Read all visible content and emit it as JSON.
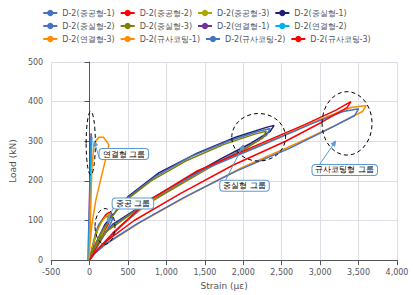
{
  "chart_data": {
    "type": "line",
    "xlabel": "Strain (με)",
    "ylabel": "Load (kN)",
    "xlim": [
      -500,
      4000
    ],
    "ylim": [
      0,
      500
    ],
    "xticks": [
      -500,
      0,
      500,
      1000,
      1500,
      2000,
      2500,
      3000,
      3500,
      4000
    ],
    "yticks": [
      0,
      100,
      200,
      300,
      400,
      500
    ],
    "grid": true,
    "legend": "top",
    "series": [
      {
        "name": "D-2(중공형-1)",
        "color": "#4472C4",
        "x": [
          0,
          20,
          50,
          80,
          120,
          180,
          220,
          260,
          290,
          300,
          280,
          240,
          180,
          120,
          60,
          20,
          0
        ],
        "values": [
          0,
          20,
          45,
          70,
          90,
          105,
          110,
          112,
          110,
          105,
          95,
          80,
          60,
          40,
          20,
          8,
          0
        ]
      },
      {
        "name": "D-2(중공형-2)",
        "color": "#FF0000",
        "x": [
          0,
          30,
          70,
          110,
          160,
          210,
          250,
          280,
          270,
          240,
          190,
          140,
          80,
          30,
          0
        ],
        "values": [
          0,
          25,
          55,
          80,
          100,
          115,
          120,
          118,
          108,
          90,
          72,
          52,
          30,
          12,
          0
        ]
      },
      {
        "name": "D-2(중공형-3)",
        "color": "#AAAA00",
        "x": [
          0,
          25,
          60,
          100,
          150,
          200,
          240,
          260,
          250,
          220,
          170,
          110,
          55,
          15,
          0
        ],
        "values": [
          0,
          22,
          50,
          75,
          95,
          108,
          114,
          116,
          106,
          88,
          68,
          48,
          26,
          10,
          0
        ]
      },
      {
        "name": "D-2(중실형-1)",
        "color": "#1F1F6F",
        "x": [
          0,
          50,
          200,
          500,
          900,
          1400,
          1900,
          2300,
          2400,
          2350,
          2100,
          1700,
          1200,
          700,
          300,
          80,
          0
        ],
        "values": [
          0,
          30,
          90,
          160,
          220,
          270,
          310,
          335,
          340,
          325,
          295,
          255,
          200,
          140,
          90,
          40,
          0
        ]
      },
      {
        "name": "D-2(중실형-2)",
        "color": "#4472C4",
        "x": [
          0,
          40,
          180,
          450,
          850,
          1300,
          1800,
          2200,
          2350,
          2300,
          2050,
          1650,
          1150,
          650,
          260,
          60,
          0
        ],
        "values": [
          0,
          25,
          80,
          150,
          210,
          260,
          300,
          325,
          332,
          315,
          285,
          245,
          190,
          132,
          82,
          35,
          0
        ]
      },
      {
        "name": "D-2(중실형-3)",
        "color": "#808000",
        "x": [
          0,
          35,
          160,
          400,
          800,
          1250,
          1750,
          2150,
          2300,
          2250,
          2000,
          1600,
          1100,
          600,
          230,
          50,
          0
        ],
        "values": [
          0,
          22,
          72,
          140,
          200,
          250,
          292,
          318,
          325,
          308,
          278,
          238,
          182,
          124,
          74,
          30,
          0
        ]
      },
      {
        "name": "D-2(연결형-1)",
        "color": "#7030A0",
        "x": [
          -20,
          0,
          10,
          15,
          20,
          18,
          12,
          5,
          -5,
          -15,
          -20
        ],
        "values": [
          0,
          80,
          160,
          230,
          320,
          310,
          270,
          210,
          130,
          50,
          0
        ]
      },
      {
        "name": "D-2(연결형-2)",
        "color": "#00B0F0",
        "x": [
          -10,
          0,
          8,
          14,
          20,
          30,
          25,
          15,
          5,
          -8,
          -10
        ],
        "values": [
          0,
          70,
          150,
          220,
          300,
          310,
          285,
          230,
          160,
          70,
          0
        ]
      },
      {
        "name": "D-2(연결형-3)",
        "color": "#FF8C00",
        "x": [
          -5,
          0,
          10,
          20,
          30,
          50,
          80,
          120,
          180,
          220,
          250,
          230,
          190,
          140,
          80,
          30,
          5,
          -5
        ],
        "values": [
          0,
          40,
          100,
          170,
          230,
          280,
          300,
          310,
          310,
          300,
          290,
          270,
          240,
          200,
          150,
          90,
          40,
          0
        ]
      },
      {
        "name": "D-2(규사코팅-1)",
        "color": "#FF8C00",
        "x": [
          0,
          100,
          400,
          900,
          1600,
          2400,
          3000,
          3400,
          3600,
          3550,
          3200,
          2700,
          2000,
          1300,
          700,
          250,
          50,
          0
        ],
        "values": [
          0,
          25,
          85,
          165,
          240,
          305,
          355,
          385,
          390,
          375,
          340,
          295,
          235,
          165,
          100,
          45,
          15,
          0
        ]
      },
      {
        "name": "D-2(규사코팅-2)",
        "color": "#4472C4",
        "x": [
          0,
          80,
          350,
          800,
          1500,
          2300,
          2900,
          3300,
          3500,
          3450,
          3100,
          2600,
          1900,
          1200,
          620,
          200,
          40,
          0
        ],
        "values": [
          0,
          20,
          75,
          155,
          230,
          295,
          345,
          375,
          382,
          365,
          330,
          282,
          224,
          155,
          92,
          40,
          12,
          0
        ]
      },
      {
        "name": "D-2(규사코팅-3)",
        "color": "#FF0000",
        "x": [
          0,
          60,
          300,
          750,
          1400,
          2200,
          2800,
          3200,
          3400,
          3350,
          3020,
          2550,
          1870,
          1180,
          580,
          180,
          30,
          0
        ],
        "values": [
          0,
          18,
          68,
          148,
          225,
          292,
          342,
          378,
          400,
          385,
          348,
          300,
          240,
          168,
          100,
          42,
          11,
          0
        ]
      }
    ],
    "annotations": [
      {
        "text": "연결형 그룹",
        "x": 60,
        "y": 300,
        "text_x": 130,
        "text_y": 255,
        "ellipse": {
          "x": 15,
          "y": 295,
          "width": 120,
          "height": 160
        }
      },
      {
        "text": "중공 그룹",
        "x": 240,
        "y": 95,
        "text_x": 300,
        "text_y": 130,
        "ellipse": {
          "x": 200,
          "y": 85,
          "width": 260,
          "height": 90
        }
      },
      {
        "text": "중실형 그룹",
        "x": 2000,
        "y": 290,
        "text_x": 1700,
        "text_y": 175,
        "ellipse": {
          "x": 2200,
          "y": 310,
          "width": 700,
          "height": 120
        }
      },
      {
        "text": "규사코팅형 그룹",
        "x": 3200,
        "y": 300,
        "text_x": 2900,
        "text_y": 215,
        "ellipse": {
          "x": 3350,
          "y": 345,
          "width": 650,
          "height": 160
        }
      }
    ]
  }
}
